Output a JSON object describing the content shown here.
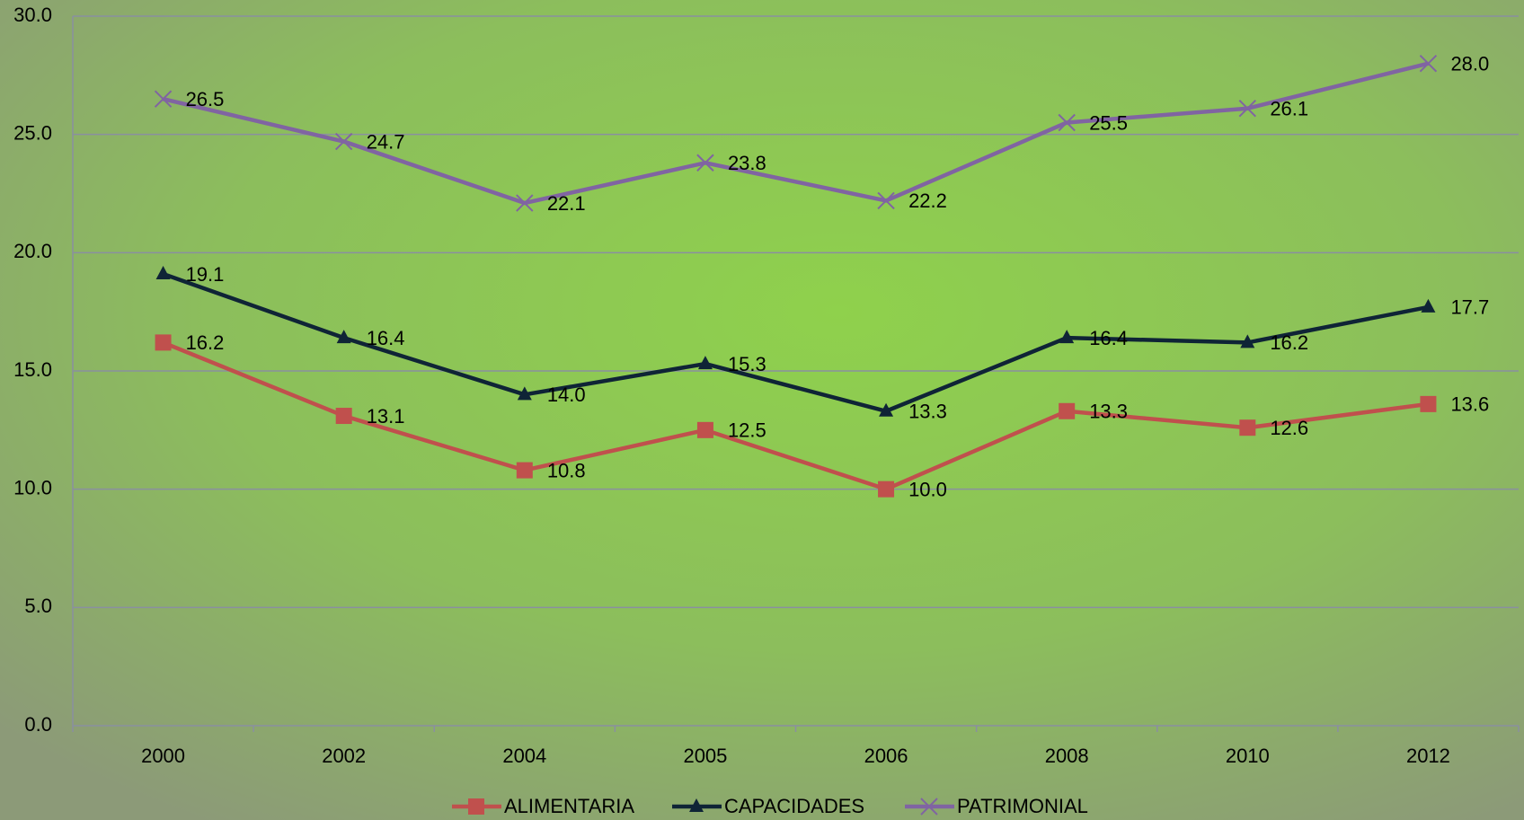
{
  "chart_data": {
    "type": "line",
    "categories": [
      "2000",
      "2002",
      "2004",
      "2005",
      "2006",
      "2008",
      "2010",
      "2012"
    ],
    "series": [
      {
        "name": "ALIMENTARIA",
        "color": "#c0504d",
        "marker": "square",
        "values": [
          16.2,
          13.1,
          10.8,
          12.5,
          10.0,
          13.3,
          12.6,
          13.6
        ],
        "value_labels": [
          "16.2",
          "13.1",
          "10.8",
          "12.5",
          "10.0",
          "13.3",
          "12.6",
          "13.6"
        ]
      },
      {
        "name": "CAPACIDADES",
        "color": "#0f2436",
        "marker": "triangle",
        "values": [
          19.1,
          16.4,
          14.0,
          15.3,
          13.3,
          16.4,
          16.2,
          17.7
        ],
        "value_labels": [
          "19.1",
          "16.4",
          "14.0",
          "15.3",
          "13.3",
          "16.4",
          "16.2",
          "17.7"
        ]
      },
      {
        "name": "PATRIMONIAL",
        "color": "#8064a2",
        "marker": "x",
        "values": [
          26.5,
          24.7,
          22.1,
          23.8,
          22.2,
          25.5,
          26.1,
          28.0
        ],
        "value_labels": [
          "26.5",
          "24.7",
          "22.1",
          "23.8",
          "22.2",
          "25.5",
          "26.1",
          "28.0"
        ]
      }
    ],
    "ylim": [
      0,
      30
    ],
    "yticks": [
      {
        "value": 0,
        "label": "0.0"
      },
      {
        "value": 5,
        "label": "5.0"
      },
      {
        "value": 10,
        "label": "10.0"
      },
      {
        "value": 15,
        "label": "15.0"
      },
      {
        "value": 20,
        "label": "20.0"
      },
      {
        "value": 25,
        "label": "25.0"
      },
      {
        "value": 30,
        "label": "30.0"
      }
    ],
    "grid": true,
    "legend": "bottom"
  }
}
